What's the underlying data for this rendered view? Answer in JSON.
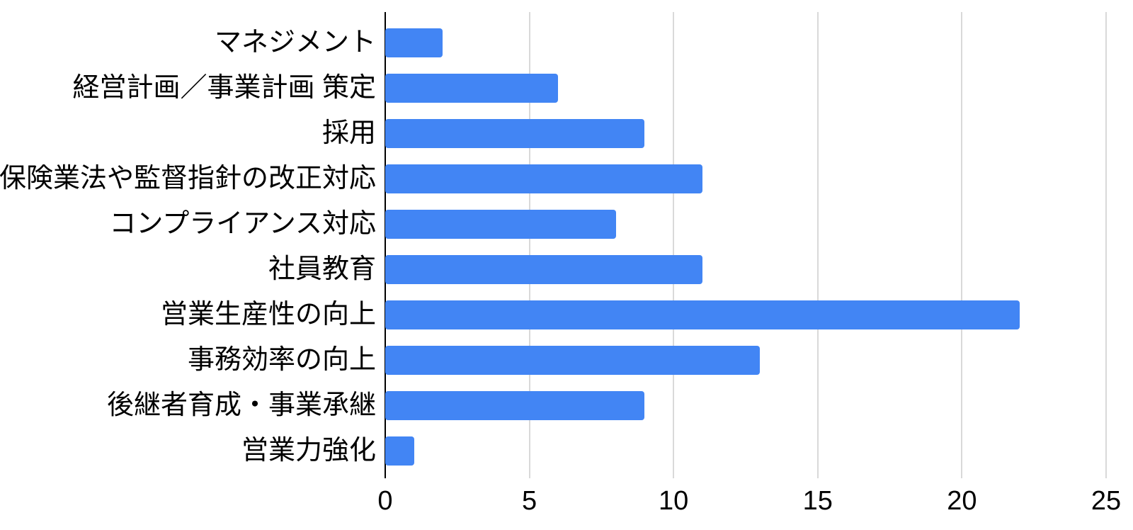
{
  "chart_data": {
    "type": "bar",
    "orientation": "horizontal",
    "title": "",
    "xlabel": "",
    "ylabel": "",
    "categories": [
      "マネジメント",
      "経営計画／事業計画 策定",
      "採用",
      "保険業法や監督指針の改正対応",
      "コンプライアンス対応",
      "社員教育",
      "営業生産性の向上",
      "事務効率の向上",
      "後継者育成・事業承継",
      "営業力強化"
    ],
    "values": [
      2,
      6,
      9,
      11,
      8,
      11,
      22,
      13,
      9,
      1
    ],
    "xlim": [
      0,
      25
    ],
    "x_ticks": [
      0,
      5,
      10,
      15,
      20,
      25
    ],
    "grid": true,
    "legend": "none",
    "colors": {
      "bar": "#4285f4",
      "gridline": "#d9d9d9",
      "axis_line": "#000000",
      "text": "#000000",
      "background": "#ffffff"
    }
  }
}
